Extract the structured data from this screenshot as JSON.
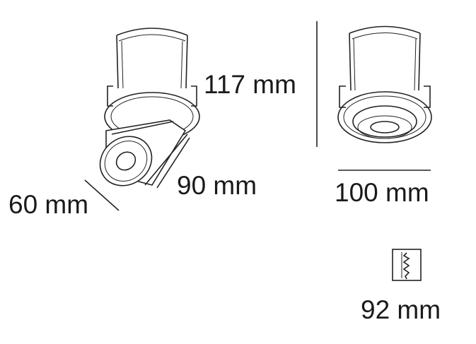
{
  "dimensions": {
    "height": "117 mm",
    "length": "90 mm",
    "diameter": "60 mm",
    "width": "100 mm",
    "cutout": "92 mm"
  },
  "icons": {
    "cutout": "ceiling-cutout-icon"
  },
  "colors": {
    "line": "#222222",
    "text": "#1a1a1a",
    "background": "#ffffff"
  }
}
